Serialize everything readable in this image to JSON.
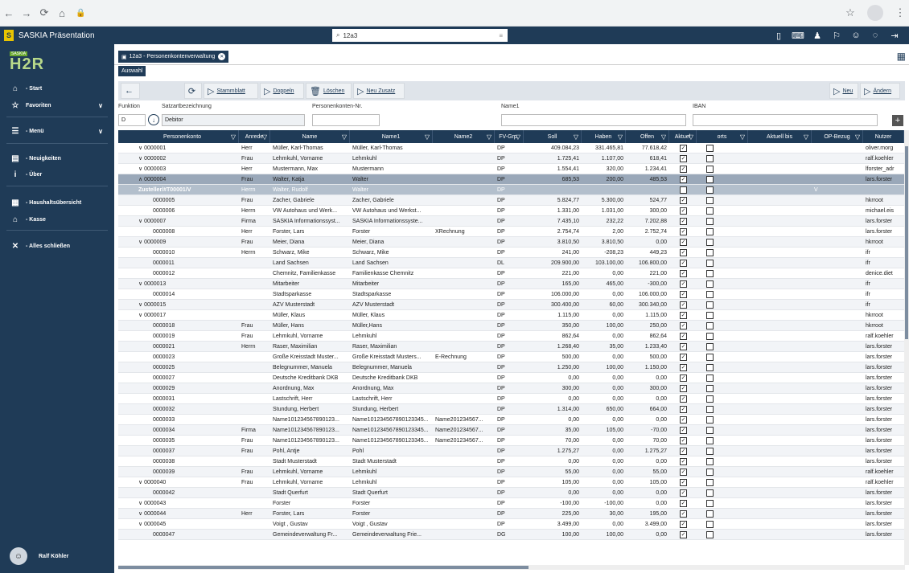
{
  "browser": {
    "back": "←",
    "forward": "→",
    "reload": "⟳",
    "home": "⌂",
    "lock": "🔒",
    "star": "☆",
    "menu": "⋮"
  },
  "app": {
    "title": "SASKIA Präsentation",
    "logo_letter": "S",
    "search_value": "12a3"
  },
  "sidebar": {
    "logo_small": "SASKIA",
    "logo_big": "H2R",
    "items": [
      {
        "label": "- Start",
        "icon": "⌂"
      },
      {
        "label": "Favoriten",
        "icon": "☆"
      },
      {
        "label": "- Menü",
        "icon": "☰"
      },
      {
        "label": "- Neuigkeiten",
        "icon": "▤"
      },
      {
        "label": "- Über",
        "icon": "i"
      },
      {
        "label": "- Haushaltsübersicht",
        "icon": "▦"
      },
      {
        "label": "- Kasse",
        "icon": "⌂"
      },
      {
        "label": "- Alles schließen",
        "icon": "✕"
      }
    ],
    "user": "Ralf Köhler"
  },
  "tabs": {
    "main": "12a3 - Personenkontenverwaltung",
    "sub": "Auswahl"
  },
  "toolbar": {
    "stammblatt": "Stammblatt",
    "doppeln": "Doppeln",
    "loeschen": "Löschen",
    "neu_zusatz": "Neu Zusatz",
    "neu": "Neu",
    "aendern": "Ändern"
  },
  "filters": {
    "funktion_label": "Funktion",
    "funktion_value": "D",
    "satzart_label": "Satzartbezeichnung",
    "satzart_value": "Debitor",
    "pknr_label": "Personenkonten-Nr.",
    "pknr_value": "",
    "name1_label": "Name1",
    "name1_value": "",
    "iban_label": "IBAN",
    "iban_value": ""
  },
  "columns": [
    "Personenkonto",
    "Anrede",
    "Name",
    "Name1",
    "Name2",
    "FV-Grp.",
    "Soll",
    "Haben",
    "Offen",
    "Aktuel",
    "orts",
    "Aktuell bis",
    "OP-Bezug",
    "Nutzer"
  ],
  "rows": [
    {
      "exp": "∨",
      "k": "0000001",
      "a": "Herr",
      "n": "Müller, Karl-Thomas",
      "n1": "Müller, Karl-Thomas",
      "n2": "",
      "fv": "DP",
      "s": "409.084,23",
      "h": "331.465,81",
      "o": "77.618,42",
      "ak": true,
      "u": "oliver.morg"
    },
    {
      "exp": "∨",
      "k": "0000002",
      "a": "Frau",
      "n": "Lehmkuhl, Vorname",
      "n1": "Lehmkuhl",
      "n2": "",
      "fv": "DP",
      "s": "1.725,41",
      "h": "1.107,00",
      "o": "618,41",
      "ak": true,
      "u": "ralf.koehler"
    },
    {
      "exp": "∨",
      "k": "0000003",
      "a": "Herr",
      "n": "Mustermann, Max",
      "n1": "Mustermann",
      "n2": "",
      "fv": "DP",
      "s": "1.554,41",
      "h": "320,00",
      "o": "1.234,41",
      "ak": true,
      "u": "lforster_adr"
    },
    {
      "exp": "∧",
      "k": "0000004",
      "a": "Frau",
      "n": "Walter, Katja",
      "n1": "Walter",
      "n2": "",
      "fv": "DP",
      "s": "685,53",
      "h": "200,00",
      "o": "485,53",
      "ak": true,
      "u": "lars.forster",
      "sel": true
    },
    {
      "exp": "",
      "k": "Zusteller/#T00001/V",
      "a": "Herrn",
      "n": "Walter, Rudolf",
      "n1": "Walter",
      "n2": "",
      "fv": "DP",
      "s": "",
      "h": "",
      "o": "",
      "ak": true,
      "op": "V",
      "u": "",
      "sub": true
    },
    {
      "exp": "",
      "k": "0000005",
      "a": "Frau",
      "n": "Zacher, Gabriele",
      "n1": "Zacher, Gabriele",
      "n2": "",
      "fv": "DP",
      "s": "5.824,77",
      "h": "5.300,00",
      "o": "524,77",
      "ak": true,
      "u": "hkrroot"
    },
    {
      "exp": "",
      "k": "0000006",
      "a": "Herrn",
      "n": "VW Autohaus und Werk...",
      "n1": "VW Autohaus und Werkst...",
      "n2": "",
      "fv": "DP",
      "s": "1.331,00",
      "h": "1.031,00",
      "o": "300,00",
      "ak": true,
      "u": "michael.eis"
    },
    {
      "exp": "∨",
      "k": "0000007",
      "a": "Firma",
      "n": "SASKIA Informationssyst...",
      "n1": "SASKIA Informationssyste...",
      "n2": "",
      "fv": "DP",
      "s": "7.435,10",
      "h": "232,22",
      "o": "7.202,88",
      "ak": true,
      "u": "lars.forster"
    },
    {
      "exp": "",
      "k": "0000008",
      "a": "Herr",
      "n": "Forster, Lars",
      "n1": "Forster",
      "n2": "XRechnung",
      "fv": "DP",
      "s": "2.754,74",
      "h": "2,00",
      "o": "2.752,74",
      "ak": true,
      "u": "lars.forster"
    },
    {
      "exp": "∨",
      "k": "0000009",
      "a": "Frau",
      "n": "Meier, Diana",
      "n1": "Meier, Diana",
      "n2": "",
      "fv": "DP",
      "s": "3.810,50",
      "h": "3.810,50",
      "o": "0,00",
      "ak": true,
      "u": "hkrroot"
    },
    {
      "exp": "",
      "k": "0000010",
      "a": "Herrn",
      "n": "Schwarz, Mike",
      "n1": "Schwarz, Mike",
      "n2": "",
      "fv": "DP",
      "s": "241,00",
      "h": "-208,23",
      "o": "449,23",
      "ak": true,
      "u": "ifr"
    },
    {
      "exp": "",
      "k": "0000011",
      "a": "",
      "n": "Land Sachsen",
      "n1": "Land Sachsen",
      "n2": "",
      "fv": "DL",
      "s": "209.900,00",
      "h": "103.100,00",
      "o": "106.800,00",
      "ak": true,
      "u": "ifr"
    },
    {
      "exp": "",
      "k": "0000012",
      "a": "",
      "n": "Chemnitz, Familienkasse",
      "n1": "Familienkasse Chemnitz",
      "n2": "",
      "fv": "DP",
      "s": "221,00",
      "h": "0,00",
      "o": "221,00",
      "ak": true,
      "u": "denice.diet"
    },
    {
      "exp": "∨",
      "k": "0000013",
      "a": "",
      "n": "Mitarbeiter",
      "n1": "Mitarbeiter",
      "n2": "",
      "fv": "DP",
      "s": "165,00",
      "h": "465,00",
      "o": "-300,00",
      "ak": true,
      "u": "ifr"
    },
    {
      "exp": "",
      "k": "0000014",
      "a": "",
      "n": "Stadtsparkasse",
      "n1": "Stadtsparkasse",
      "n2": "",
      "fv": "DP",
      "s": "106.000,00",
      "h": "0,00",
      "o": "106.000,00",
      "ak": true,
      "u": "ifr"
    },
    {
      "exp": "∨",
      "k": "0000015",
      "a": "",
      "n": "AZV Musterstadt",
      "n1": "AZV Musterstadt",
      "n2": "",
      "fv": "DP",
      "s": "300.400,00",
      "h": "60,00",
      "o": "300.340,00",
      "ak": true,
      "u": "ifr"
    },
    {
      "exp": "∨",
      "k": "0000017",
      "a": "",
      "n": "Müller, Klaus",
      "n1": "Müller, Klaus",
      "n2": "",
      "fv": "DP",
      "s": "1.115,00",
      "h": "0,00",
      "o": "1.115,00",
      "ak": true,
      "u": "hkrroot"
    },
    {
      "exp": "",
      "k": "0000018",
      "a": "Frau",
      "n": "Müller, Hans",
      "n1": "Müller,Hans",
      "n2": "",
      "fv": "DP",
      "s": "350,00",
      "h": "100,00",
      "o": "250,00",
      "ak": true,
      "u": "hkrroot"
    },
    {
      "exp": "",
      "k": "0000019",
      "a": "Frau",
      "n": "Lehmkuhl, Vorname",
      "n1": "Lehmkuhl",
      "n2": "",
      "fv": "DP",
      "s": "862,64",
      "h": "0,00",
      "o": "862,64",
      "ak": true,
      "u": "ralf.koehler"
    },
    {
      "exp": "",
      "k": "0000021",
      "a": "Herrn",
      "n": "Raser, Maximilian",
      "n1": "Raser, Maximilian",
      "n2": "",
      "fv": "DP",
      "s": "1.268,40",
      "h": "35,00",
      "o": "1.233,40",
      "ak": true,
      "u": "lars.forster"
    },
    {
      "exp": "",
      "k": "0000023",
      "a": "",
      "n": "Große Kreisstadt Muster...",
      "n1": "Große Kreisstadt Musters...",
      "n2": "E-Rechnung",
      "fv": "DP",
      "s": "500,00",
      "h": "0,00",
      "o": "500,00",
      "ak": true,
      "u": "lars.forster"
    },
    {
      "exp": "",
      "k": "0000025",
      "a": "",
      "n": "Belegnummer, Manuela",
      "n1": "Belegnummer, Manuela",
      "n2": "",
      "fv": "DP",
      "s": "1.250,00",
      "h": "100,00",
      "o": "1.150,00",
      "ak": true,
      "u": "lars.forster"
    },
    {
      "exp": "",
      "k": "0000027",
      "a": "",
      "n": "Deutsche Kreditbank DKB",
      "n1": "Deutsche Kreditbank DKB",
      "n2": "",
      "fv": "DP",
      "s": "0,00",
      "h": "0,00",
      "o": "0,00",
      "ak": true,
      "u": "lars.forster"
    },
    {
      "exp": "",
      "k": "0000029",
      "a": "",
      "n": "Anordnung, Max",
      "n1": "Anordnung, Max",
      "n2": "",
      "fv": "DP",
      "s": "300,00",
      "h": "0,00",
      "o": "300,00",
      "ak": true,
      "u": "lars.forster"
    },
    {
      "exp": "",
      "k": "0000031",
      "a": "",
      "n": "Lastschrift, Herr",
      "n1": "Lastschrift, Herr",
      "n2": "",
      "fv": "DP",
      "s": "0,00",
      "h": "0,00",
      "o": "0,00",
      "ak": true,
      "u": "lars.forster"
    },
    {
      "exp": "",
      "k": "0000032",
      "a": "",
      "n": "Stundung, Herbert",
      "n1": "Stundung, Herbert",
      "n2": "",
      "fv": "DP",
      "s": "1.314,00",
      "h": "650,00",
      "o": "664,00",
      "ak": true,
      "u": "lars.forster"
    },
    {
      "exp": "",
      "k": "0000033",
      "a": "",
      "n": "Name101234567890123...",
      "n1": "Name101234567890123345...",
      "n2": "Name201234567...",
      "fv": "DP",
      "s": "0,00",
      "h": "0,00",
      "o": "0,00",
      "ak": true,
      "u": "lars.forster"
    },
    {
      "exp": "",
      "k": "0000034",
      "a": "Firma",
      "n": "Name101234567890123...",
      "n1": "Name101234567890123345...",
      "n2": "Name201234567...",
      "fv": "DP",
      "s": "35,00",
      "h": "105,00",
      "o": "-70,00",
      "ak": true,
      "u": "lars.forster"
    },
    {
      "exp": "",
      "k": "0000035",
      "a": "Frau",
      "n": "Name101234567890123...",
      "n1": "Name101234567890123345...",
      "n2": "Name201234567...",
      "fv": "DP",
      "s": "70,00",
      "h": "0,00",
      "o": "70,00",
      "ak": true,
      "u": "lars.forster"
    },
    {
      "exp": "",
      "k": "0000037",
      "a": "Frau",
      "n": "Pohl, Antje",
      "n1": "Pohl",
      "n2": "",
      "fv": "DP",
      "s": "1.275,27",
      "h": "0,00",
      "o": "1.275,27",
      "ak": true,
      "u": "lars.forster"
    },
    {
      "exp": "",
      "k": "0000038",
      "a": "",
      "n": "Stadt Musterstadt",
      "n1": "Stadt Musterstadt",
      "n2": "",
      "fv": "DP",
      "s": "0,00",
      "h": "0,00",
      "o": "0,00",
      "ak": true,
      "u": "lars.forster"
    },
    {
      "exp": "",
      "k": "0000039",
      "a": "Frau",
      "n": "Lehmkuhl, Vorname",
      "n1": "Lehmkuhl",
      "n2": "",
      "fv": "DP",
      "s": "55,00",
      "h": "0,00",
      "o": "55,00",
      "ak": true,
      "u": "ralf.koehler"
    },
    {
      "exp": "∨",
      "k": "0000040",
      "a": "Frau",
      "n": "Lehmkuhl, Vorname",
      "n1": "Lehmkuhl",
      "n2": "",
      "fv": "DP",
      "s": "105,00",
      "h": "0,00",
      "o": "105,00",
      "ak": true,
      "u": "ralf.koehler"
    },
    {
      "exp": "",
      "k": "0000042",
      "a": "",
      "n": "Stadt Querfurt",
      "n1": "Stadt Querfurt",
      "n2": "",
      "fv": "DP",
      "s": "0,00",
      "h": "0,00",
      "o": "0,00",
      "ak": true,
      "u": "lars.forster"
    },
    {
      "exp": "∨",
      "k": "0000043",
      "a": "",
      "n": "Forster",
      "n1": "Forster",
      "n2": "",
      "fv": "DP",
      "s": "-100,00",
      "h": "-100,00",
      "o": "0,00",
      "ak": true,
      "u": "lars.forster"
    },
    {
      "exp": "∨",
      "k": "0000044",
      "a": "Herr",
      "n": "Forster, Lars",
      "n1": "Forster",
      "n2": "",
      "fv": "DP",
      "s": "225,00",
      "h": "30,00",
      "o": "195,00",
      "ak": true,
      "u": "lars.forster"
    },
    {
      "exp": "∨",
      "k": "0000045",
      "a": "",
      "n": "Voigt , Gustav",
      "n1": "Voigt , Gustav",
      "n2": "",
      "fv": "DP",
      "s": "3.499,00",
      "h": "0,00",
      "o": "3.499,00",
      "ak": true,
      "u": "lars.forster"
    },
    {
      "exp": "",
      "k": "0000047",
      "a": "",
      "n": "Gemeindeverwaltung Fr...",
      "n1": "Gemeindeverwaltung Frie...",
      "n2": "",
      "fv": "DG",
      "s": "100,00",
      "h": "100,00",
      "o": "0,00",
      "ak": true,
      "u": "lars.forster"
    }
  ]
}
